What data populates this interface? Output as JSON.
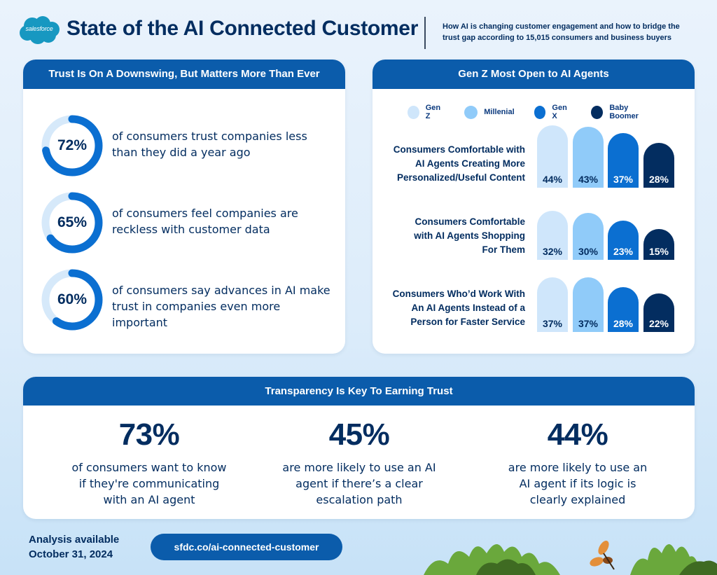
{
  "header": {
    "logo_text": "salesforce",
    "title": "State of the AI Connected Customer",
    "subtitle": "How AI is changing customer engagement and how to bridge the trust gap according to 15,015 consumers and business buyers"
  },
  "trust_card": {
    "title": "Trust Is On A Downswing, But Matters More Than Ever",
    "stats": [
      {
        "value": 72,
        "label": "72%",
        "text": "of consumers trust companies less than they did a year ago"
      },
      {
        "value": 65,
        "label": "65%",
        "text": "of consumers feel companies are reckless with customer data"
      },
      {
        "value": 60,
        "label": "60%",
        "text": "of consumers say advances in AI make trust in companies even more important"
      }
    ]
  },
  "genz_card": {
    "title": "Gen Z Most Open to AI Agents"
  },
  "chart_data": {
    "type": "bar",
    "title": "Gen Z Most Open to AI Agents",
    "xlabel": "",
    "ylabel": "",
    "legend_position": "top",
    "categories": [
      "Consumers Comfortable with AI Agents Creating More Personalized/Useful Content",
      "Consumers  Comfortable with AI Agents Shopping For Them",
      "Consumers Who’d Work With An AI Agents Instead of a Person for Faster Service"
    ],
    "category_lines": [
      [
        "Consumers Comfortable with",
        "AI Agents Creating More",
        "Personalized/Useful Content"
      ],
      [
        "Consumers  Comfortable",
        "with AI Agents Shopping",
        "For Them"
      ],
      [
        "Consumers Who’d Work With",
        "An AI Agents Instead of a",
        "Person for Faster Service"
      ]
    ],
    "series": [
      {
        "name": "Gen Z",
        "color": "#cfe6fb",
        "text_color": "#032d60",
        "values": [
          44,
          32,
          37
        ]
      },
      {
        "name": "Millenial",
        "color": "#90cbf9",
        "text_color": "#032d60",
        "values": [
          43,
          30,
          37
        ]
      },
      {
        "name": "Gen X",
        "color": "#0b6fd1",
        "text_color": "#ffffff",
        "values": [
          37,
          23,
          28
        ]
      },
      {
        "name": "Baby Boomer",
        "color": "#032d60",
        "text_color": "#ffffff",
        "values": [
          28,
          15,
          22
        ]
      }
    ],
    "unit": "%"
  },
  "transparency_card": {
    "title": "Transparency Is Key To Earning Trust",
    "stats": [
      {
        "value": "73%",
        "text_lines": [
          "of consumers want to know",
          "if they're communicating",
          "with an AI agent"
        ]
      },
      {
        "value": "45%",
        "text_lines": [
          "are more likely to use an AI",
          "agent if there’s a clear",
          "escalation path"
        ]
      },
      {
        "value": "44%",
        "text_lines": [
          "are more likely to use an",
          "AI agent if its logic is",
          "clearly explained"
        ]
      }
    ]
  },
  "footer": {
    "note_line1": "Analysis available",
    "note_line2": "October 31, 2024",
    "link_label": "sfdc.co/ai-connected-customer"
  },
  "colors": {
    "brand_blue": "#0b5cab",
    "navy": "#032d60",
    "donut_track": "#d6e9fa",
    "donut_fill": "#0b6fd1"
  }
}
